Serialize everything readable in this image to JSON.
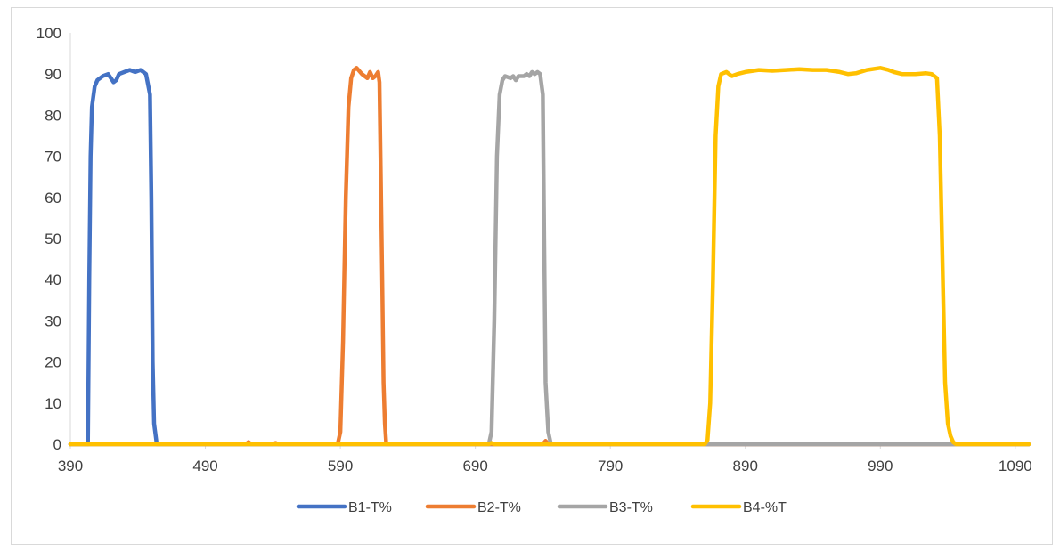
{
  "chart_data": {
    "type": "line",
    "title": "",
    "xlabel": "",
    "ylabel": "",
    "xlim": [
      390,
      1100
    ],
    "ylim": [
      0,
      100
    ],
    "x_ticks": [
      390,
      490,
      590,
      690,
      790,
      890,
      990,
      1090
    ],
    "y_ticks": [
      0,
      10,
      20,
      30,
      40,
      50,
      60,
      70,
      80,
      90,
      100
    ],
    "grid": false,
    "legend_position": "bottom",
    "series": [
      {
        "name": "B1-T%",
        "color": "#4472C4",
        "points": [
          [
            390,
            0
          ],
          [
            401,
            0
          ],
          [
            403,
            0
          ],
          [
            404,
            40
          ],
          [
            405,
            70
          ],
          [
            406,
            82
          ],
          [
            408,
            87
          ],
          [
            410,
            88.5
          ],
          [
            414,
            89.5
          ],
          [
            418,
            90
          ],
          [
            420,
            89
          ],
          [
            422,
            88
          ],
          [
            424,
            88.5
          ],
          [
            426,
            90
          ],
          [
            430,
            90.5
          ],
          [
            434,
            91
          ],
          [
            438,
            90.5
          ],
          [
            442,
            91
          ],
          [
            446,
            90
          ],
          [
            449,
            85
          ],
          [
            450,
            60
          ],
          [
            451,
            20
          ],
          [
            452,
            5
          ],
          [
            454,
            0
          ],
          [
            1100,
            0
          ]
        ]
      },
      {
        "name": "B2-T%",
        "color": "#ED7D31",
        "points": [
          [
            390,
            0
          ],
          [
            520,
            0
          ],
          [
            522,
            0.5
          ],
          [
            524,
            0
          ],
          [
            540,
            0
          ],
          [
            542,
            0.3
          ],
          [
            544,
            0
          ],
          [
            588,
            0
          ],
          [
            590,
            3
          ],
          [
            592,
            25
          ],
          [
            594,
            60
          ],
          [
            596,
            82
          ],
          [
            598,
            89
          ],
          [
            600,
            91
          ],
          [
            602,
            91.5
          ],
          [
            606,
            90
          ],
          [
            610,
            89
          ],
          [
            612,
            90.5
          ],
          [
            614,
            89
          ],
          [
            616,
            89.5
          ],
          [
            618,
            90.5
          ],
          [
            619,
            88
          ],
          [
            621,
            40
          ],
          [
            622,
            15
          ],
          [
            623,
            5
          ],
          [
            624,
            0
          ],
          [
            740,
            0
          ],
          [
            742,
            0.8
          ],
          [
            744,
            0
          ],
          [
            1100,
            0
          ]
        ]
      },
      {
        "name": "B3-T%",
        "color": "#A5A5A5",
        "points": [
          [
            390,
            0
          ],
          [
            700,
            0
          ],
          [
            702,
            3
          ],
          [
            704,
            30
          ],
          [
            706,
            70
          ],
          [
            708,
            85
          ],
          [
            710,
            88.5
          ],
          [
            712,
            89.5
          ],
          [
            716,
            89
          ],
          [
            718,
            89.5
          ],
          [
            720,
            88.5
          ],
          [
            722,
            89.5
          ],
          [
            726,
            89.5
          ],
          [
            728,
            90
          ],
          [
            730,
            89.5
          ],
          [
            732,
            90.5
          ],
          [
            734,
            90
          ],
          [
            736,
            90.5
          ],
          [
            738,
            90
          ],
          [
            740,
            85
          ],
          [
            741,
            50
          ],
          [
            742,
            15
          ],
          [
            744,
            3
          ],
          [
            746,
            0
          ],
          [
            1100,
            0
          ]
        ]
      },
      {
        "name": "B4-%T",
        "color": "#FFC000",
        "points": [
          [
            390,
            0
          ],
          [
            700,
            0
          ],
          [
            702,
            0.3
          ],
          [
            704,
            0
          ],
          [
            860,
            0
          ],
          [
            862,
            1
          ],
          [
            864,
            10
          ],
          [
            866,
            40
          ],
          [
            868,
            75
          ],
          [
            870,
            87
          ],
          [
            872,
            90
          ],
          [
            876,
            90.5
          ],
          [
            880,
            89.5
          ],
          [
            884,
            90
          ],
          [
            890,
            90.5
          ],
          [
            900,
            91
          ],
          [
            910,
            90.8
          ],
          [
            920,
            91
          ],
          [
            930,
            91.2
          ],
          [
            940,
            91
          ],
          [
            950,
            91
          ],
          [
            960,
            90.5
          ],
          [
            966,
            90
          ],
          [
            972,
            90.2
          ],
          [
            980,
            91
          ],
          [
            990,
            91.5
          ],
          [
            996,
            91
          ],
          [
            1000,
            90.5
          ],
          [
            1006,
            90
          ],
          [
            1016,
            90
          ],
          [
            1024,
            90.2
          ],
          [
            1028,
            90
          ],
          [
            1032,
            89
          ],
          [
            1034,
            75
          ],
          [
            1036,
            45
          ],
          [
            1038,
            15
          ],
          [
            1040,
            5
          ],
          [
            1042,
            2
          ],
          [
            1044,
            0.5
          ],
          [
            1046,
            0
          ],
          [
            1100,
            0
          ]
        ]
      }
    ]
  }
}
